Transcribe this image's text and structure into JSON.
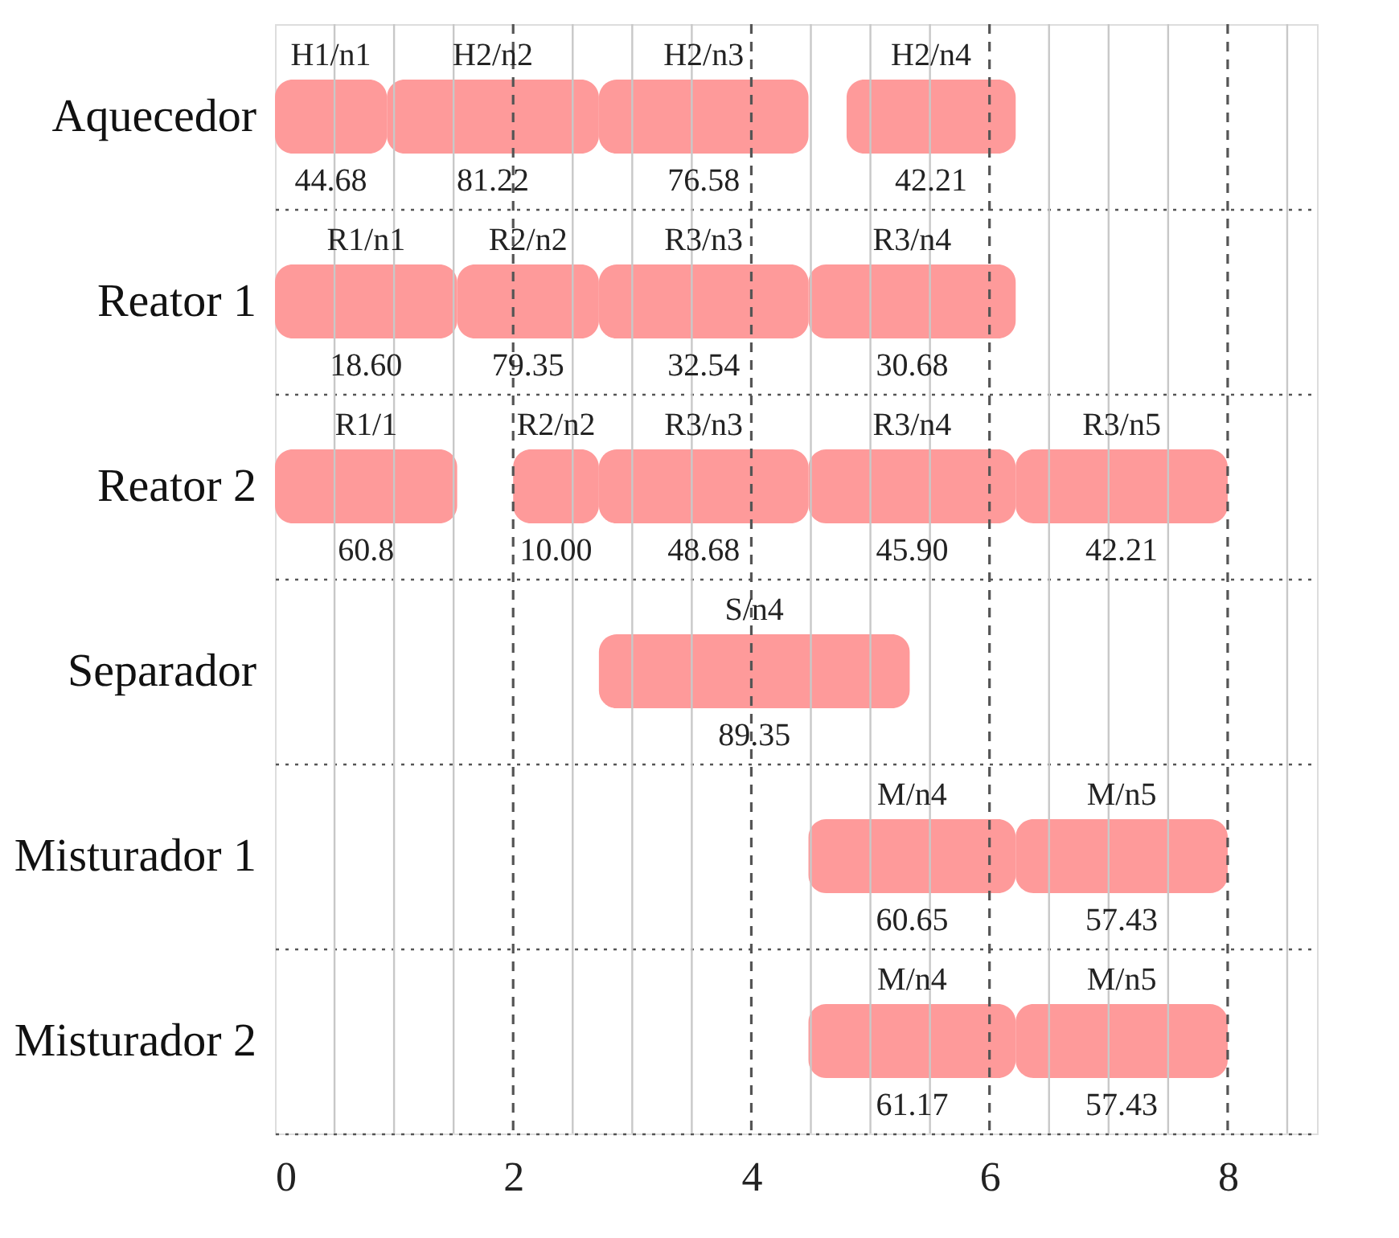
{
  "chart_data": {
    "type": "bar",
    "orientation": "horizontal",
    "categories": [
      "Aquecedor",
      "Reator 1",
      "Reator 2",
      "Separador",
      "Misturador 1",
      "Misturador 2"
    ],
    "series": [
      {
        "color": "#fe9a9a",
        "base": [
          0,
          0,
          0,
          2.72,
          4.48,
          4.48
        ],
        "values": [
          0.94,
          1.53,
          1.53,
          2.61,
          1.74,
          1.74
        ]
      },
      {
        "color": "#fe9a9a",
        "base": [
          0.94,
          1.53,
          2.0,
          null,
          6.22,
          6.22
        ],
        "values": [
          1.78,
          1.19,
          0.72,
          null,
          1.78,
          1.78
        ]
      },
      {
        "color": "#fe9a9a",
        "base": [
          2.72,
          2.72,
          2.72,
          null,
          null,
          null
        ],
        "values": [
          1.76,
          1.76,
          1.76,
          null,
          null,
          null
        ]
      },
      {
        "color": "#fe9a9a",
        "base": [
          4.8,
          4.48,
          4.48,
          null,
          null,
          null
        ],
        "values": [
          1.42,
          1.74,
          1.74,
          null,
          null,
          null
        ]
      },
      {
        "color": "#fe9a9a",
        "base": [
          null,
          null,
          6.22,
          null,
          null,
          null
        ],
        "values": [
          null,
          null,
          1.78,
          null,
          null,
          null
        ]
      }
    ],
    "xlim": [
      0,
      8.75
    ],
    "xticks": [
      0,
      {
        "value": 0.5,
        "label": null
      },
      {
        "value": 1,
        "label": null
      },
      {
        "value": 1.5,
        "label": null
      },
      2,
      {
        "value": 2.5,
        "label": null
      },
      {
        "value": 3,
        "label": null
      },
      {
        "value": 3.5,
        "label": null
      },
      4,
      {
        "value": 4.5,
        "label": null
      },
      {
        "value": 5,
        "label": null
      },
      {
        "value": 5.5,
        "label": null
      },
      6,
      {
        "value": 6.5,
        "label": null
      },
      {
        "value": 7,
        "label": null
      },
      {
        "value": 7.5,
        "label": null
      },
      8,
      {
        "value": 8.5,
        "label": null
      }
    ],
    "grid": true,
    "annotations": [
      "H1/n1",
      "44.68",
      "H2/n2",
      "81.22",
      "H2/n3",
      "76.58",
      "H2/n4",
      "42.21",
      "R1/n1",
      "18.60",
      "R2/n2",
      "79.35",
      "R3/n3",
      "32.54",
      "R3/n4",
      "30.68",
      "R1/1",
      "60.8",
      "R2/n2",
      "10.00",
      "R3/n3",
      "48.68",
      "R3/n4",
      "45.90",
      "R3/n5",
      "42.21",
      "S/n4",
      "89.35",
      "M/n4",
      "60.65",
      "M/n5",
      "57.43",
      "M/n4",
      "61.17",
      "M/n5",
      "57.43"
    ]
  }
}
